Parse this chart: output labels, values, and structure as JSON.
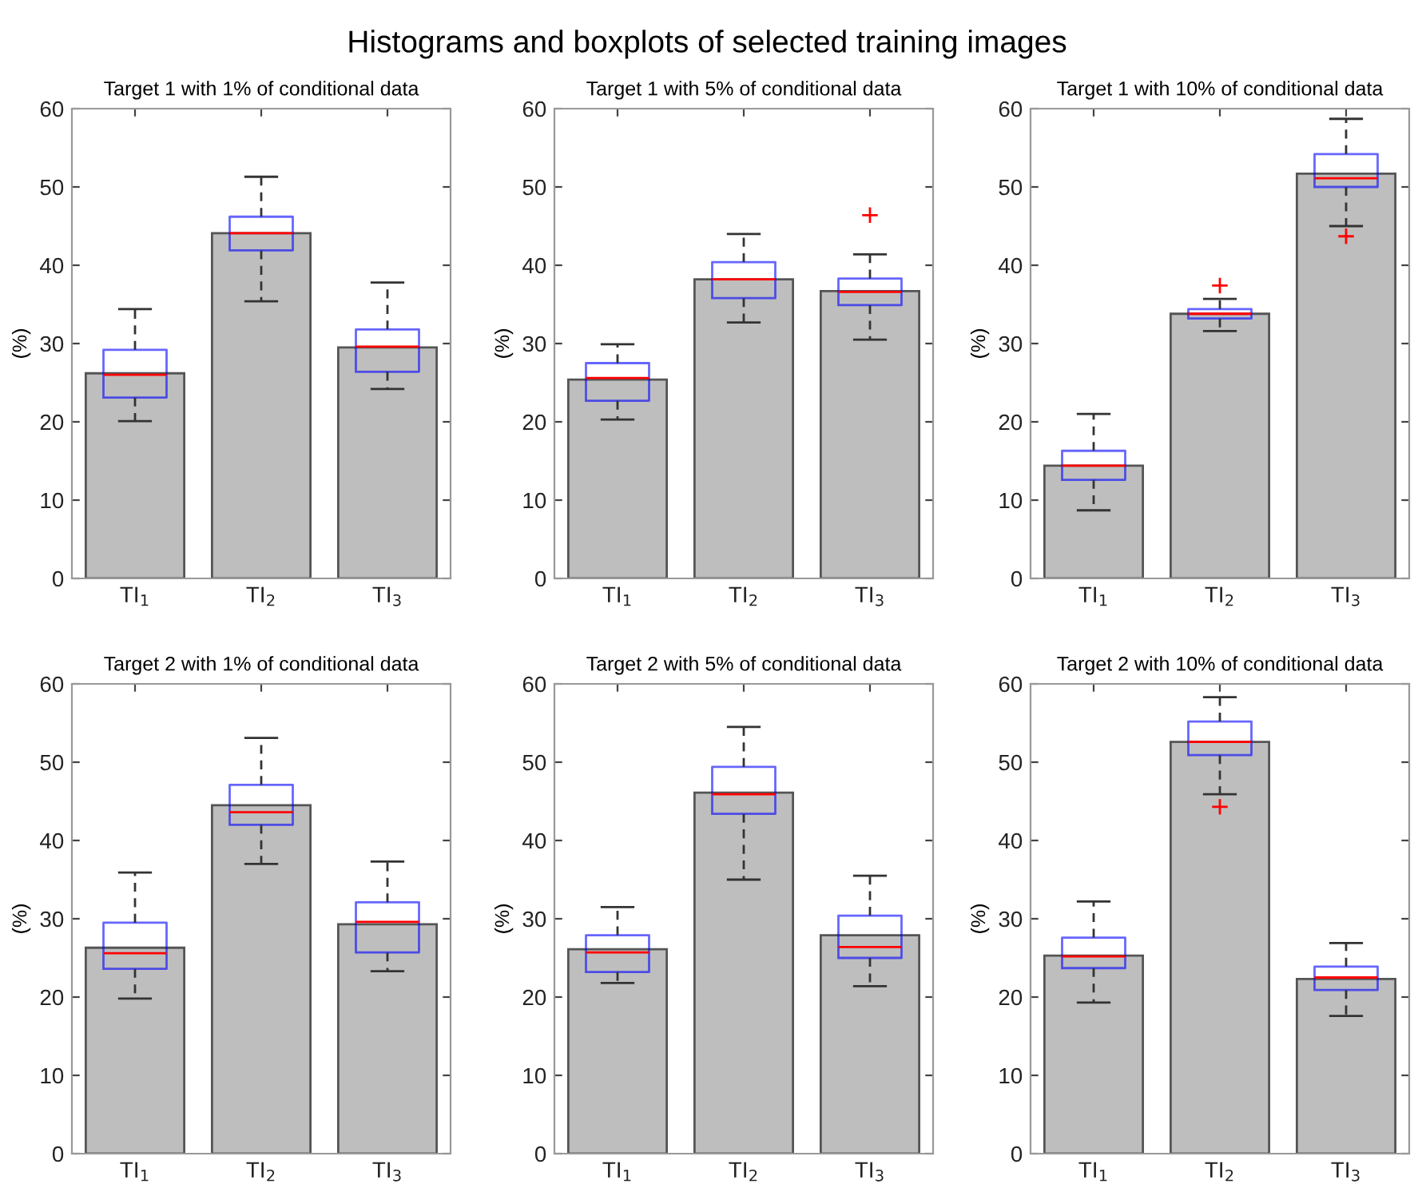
{
  "chart_data": [
    {
      "type": "bar",
      "title": "Target 1 with 1% of conditional data",
      "annotations": [
        "Histograms and boxplots of selected training images"
      ],
      "ylabel": "(%)",
      "categories": [
        "TI$_{1}$",
        "TI$_{2}$",
        "TI$_{3}$"
      ],
      "ylim": [
        0,
        60
      ],
      "yticks": [
        0,
        10,
        20,
        30,
        40,
        50,
        60
      ],
      "series": [
        {
          "type": "bar",
          "color": "#bebebe",
          "values": [
            26.2,
            44.1,
            29.5
          ]
        },
        {
          "type": "box",
          "color": "#0000ff",
          "boxes": [
            {
              "low": 20.1,
              "q1": 23.1,
              "median": 26.0,
              "q3": 29.2,
              "high": 34.4
            },
            {
              "low": 35.4,
              "q1": 41.9,
              "median": 44.1,
              "q3": 46.2,
              "high": 51.3
            },
            {
              "low": 24.2,
              "q1": 26.4,
              "median": 29.6,
              "q3": 31.8,
              "high": 37.8
            }
          ]
        }
      ]
    },
    {
      "type": "bar",
      "title": "Target 1 with 5% of conditional data",
      "ylabel": "(%)",
      "categories": [
        "TI$_{1}$",
        "TI$_{2}$",
        "TI$_{3}$"
      ],
      "ylim": [
        0,
        60
      ],
      "yticks": [
        0,
        10,
        20,
        30,
        40,
        50,
        60
      ],
      "series": [
        {
          "type": "bar",
          "color": "#bebebe",
          "values": [
            25.4,
            38.2,
            36.7
          ]
        },
        {
          "type": "box",
          "color": "#0000ff",
          "boxes": [
            {
              "low": 20.3,
              "q1": 22.7,
              "median": 25.6,
              "q3": 27.5,
              "high": 29.9
            },
            {
              "low": 32.7,
              "q1": 35.8,
              "median": 38.2,
              "q3": 40.4,
              "high": 44.0
            },
            {
              "low": 30.5,
              "q1": 34.9,
              "median": 36.6,
              "q3": 38.3,
              "high": 41.4,
              "outliers": [
                46.4
              ]
            }
          ]
        }
      ]
    },
    {
      "type": "bar",
      "title": "Target 1 with 10% of conditional data",
      "ylabel": "(%)",
      "categories": [
        "TI$_{1}$",
        "TI$_{2}$",
        "TI$_{3}$"
      ],
      "ylim": [
        0,
        60
      ],
      "yticks": [
        0,
        10,
        20,
        30,
        40,
        50,
        60
      ],
      "series": [
        {
          "type": "bar",
          "color": "#bebebe",
          "values": [
            14.4,
            33.8,
            51.7
          ]
        },
        {
          "type": "box",
          "color": "#0000ff",
          "boxes": [
            {
              "low": 8.7,
              "q1": 12.6,
              "median": 14.4,
              "q3": 16.3,
              "high": 21.0
            },
            {
              "low": 31.6,
              "q1": 33.2,
              "median": 33.8,
              "q3": 34.4,
              "high": 35.7,
              "outliers": [
                37.4
              ]
            },
            {
              "low": 45.0,
              "q1": 50.0,
              "median": 51.1,
              "q3": 54.2,
              "high": 58.7,
              "outliers": [
                43.7
              ]
            }
          ]
        }
      ]
    },
    {
      "type": "bar",
      "title": "Target 2 with 1% of conditional data",
      "ylabel": "(%)",
      "categories": [
        "TI$_{1}$",
        "TI$_{2}$",
        "TI$_{3}$"
      ],
      "ylim": [
        0,
        60
      ],
      "yticks": [
        0,
        10,
        20,
        30,
        40,
        50,
        60
      ],
      "series": [
        {
          "type": "bar",
          "color": "#bebebe",
          "values": [
            26.3,
            44.5,
            29.3
          ]
        },
        {
          "type": "box",
          "color": "#0000ff",
          "boxes": [
            {
              "low": 19.8,
              "q1": 23.6,
              "median": 25.6,
              "q3": 29.5,
              "high": 35.9
            },
            {
              "low": 37.0,
              "q1": 42.0,
              "median": 43.6,
              "q3": 47.1,
              "high": 53.1
            },
            {
              "low": 23.3,
              "q1": 25.7,
              "median": 29.6,
              "q3": 32.1,
              "high": 37.3
            }
          ]
        }
      ]
    },
    {
      "type": "bar",
      "title": "Target 2 with 5% of conditional data",
      "ylabel": "(%)",
      "categories": [
        "TI$_{1}$",
        "TI$_{2}$",
        "TI$_{3}$"
      ],
      "ylim": [
        0,
        60
      ],
      "yticks": [
        0,
        10,
        20,
        30,
        40,
        50,
        60
      ],
      "series": [
        {
          "type": "bar",
          "color": "#bebebe",
          "values": [
            26.1,
            46.1,
            27.9
          ]
        },
        {
          "type": "box",
          "color": "#0000ff",
          "boxes": [
            {
              "low": 21.8,
              "q1": 23.2,
              "median": 25.7,
              "q3": 27.9,
              "high": 31.5
            },
            {
              "low": 35.0,
              "q1": 43.4,
              "median": 45.9,
              "q3": 49.4,
              "high": 54.5
            },
            {
              "low": 21.4,
              "q1": 25.0,
              "median": 26.4,
              "q3": 30.4,
              "high": 35.5
            }
          ]
        }
      ]
    },
    {
      "type": "bar",
      "title": "Target 2 with 10% of conditional data",
      "ylabel": "(%)",
      "categories": [
        "TI$_{1}$",
        "TI$_{2}$",
        "TI$_{3}$"
      ],
      "ylim": [
        0,
        60
      ],
      "yticks": [
        0,
        10,
        20,
        30,
        40,
        50,
        60
      ],
      "series": [
        {
          "type": "bar",
          "color": "#bebebe",
          "values": [
            25.3,
            52.6,
            22.3
          ]
        },
        {
          "type": "box",
          "color": "#0000ff",
          "boxes": [
            {
              "low": 19.3,
              "q1": 23.7,
              "median": 25.2,
              "q3": 27.6,
              "high": 32.2
            },
            {
              "low": 45.9,
              "q1": 50.9,
              "median": 52.6,
              "q3": 55.2,
              "high": 58.3,
              "outliers": [
                44.3
              ]
            },
            {
              "low": 17.6,
              "q1": 20.9,
              "median": 22.5,
              "q3": 23.9,
              "high": 26.9
            }
          ]
        }
      ]
    }
  ]
}
